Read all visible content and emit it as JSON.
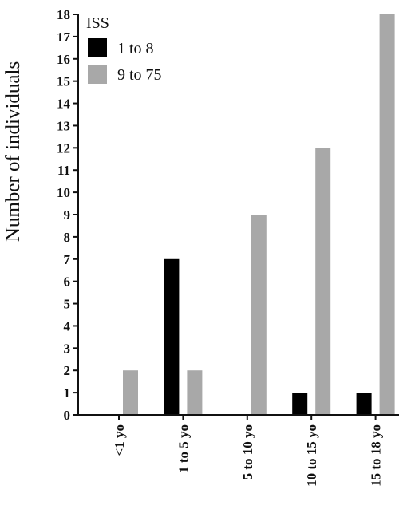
{
  "chart_data": {
    "type": "bar",
    "title": "",
    "xlabel": "",
    "ylabel": "Number of individuals",
    "categories": [
      "<1 yo",
      "1 to 5 yo",
      "5 to 10 yo",
      "10 to 15 yo",
      "15 to 18 yo"
    ],
    "series": [
      {
        "name": "1 to 8",
        "color": "#000000",
        "values": [
          0,
          7,
          0,
          1,
          1
        ]
      },
      {
        "name": "9 to 75",
        "color": "#a8a8a8",
        "values": [
          2,
          2,
          9,
          12,
          18
        ]
      }
    ],
    "ylim": [
      0,
      18
    ],
    "yticks": [
      0,
      1,
      2,
      3,
      4,
      5,
      6,
      7,
      8,
      9,
      10,
      11,
      12,
      13,
      14,
      15,
      16,
      17,
      18
    ],
    "grid": false,
    "legend": {
      "title": "ISS",
      "placement": "top-left"
    }
  }
}
